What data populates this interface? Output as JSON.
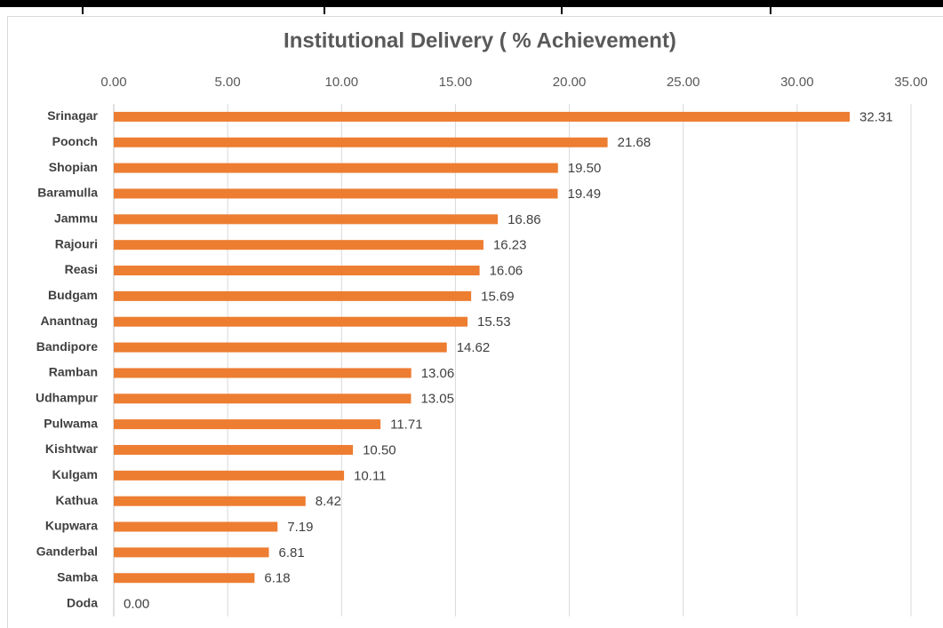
{
  "chart_data": {
    "type": "bar",
    "orientation": "horizontal",
    "title": "Institutional Delivery ( % Achievement)",
    "categories": [
      "Srinagar",
      "Poonch",
      "Shopian",
      "Baramulla",
      "Jammu",
      "Rajouri",
      "Reasi",
      "Budgam",
      "Anantnag",
      "Bandipore",
      "Ramban",
      "Udhampur",
      "Pulwama",
      "Kishtwar",
      "Kulgam",
      "Kathua",
      "Kupwara",
      "Ganderbal",
      "Samba",
      "Doda"
    ],
    "values": [
      32.31,
      21.68,
      19.5,
      19.49,
      16.86,
      16.23,
      16.06,
      15.69,
      15.53,
      14.62,
      13.06,
      13.05,
      11.71,
      10.5,
      10.11,
      8.42,
      7.19,
      6.81,
      6.18,
      0
    ],
    "value_labels": [
      "32.31",
      "21.68",
      "19.50",
      "19.49",
      "16.86",
      "16.23",
      "16.06",
      "15.69",
      "15.53",
      "14.62",
      "13.06",
      "13.05",
      "11.71",
      "10.50",
      "10.11",
      "8.42",
      "7.19",
      "6.81",
      "6.18",
      "0.00"
    ],
    "color": "#ed7d31",
    "xlim": [
      0,
      35
    ],
    "xticks": [
      {
        "value": 0,
        "label": "0.00"
      },
      {
        "value": 5,
        "label": "5.00"
      },
      {
        "value": 10,
        "label": "10.00"
      },
      {
        "value": 15,
        "label": "15.00"
      },
      {
        "value": 20,
        "label": "20.00"
      },
      {
        "value": 25,
        "label": "25.00"
      },
      {
        "value": 30,
        "label": "30.00"
      },
      {
        "value": 35,
        "label": "35.00"
      }
    ],
    "grid": true
  }
}
